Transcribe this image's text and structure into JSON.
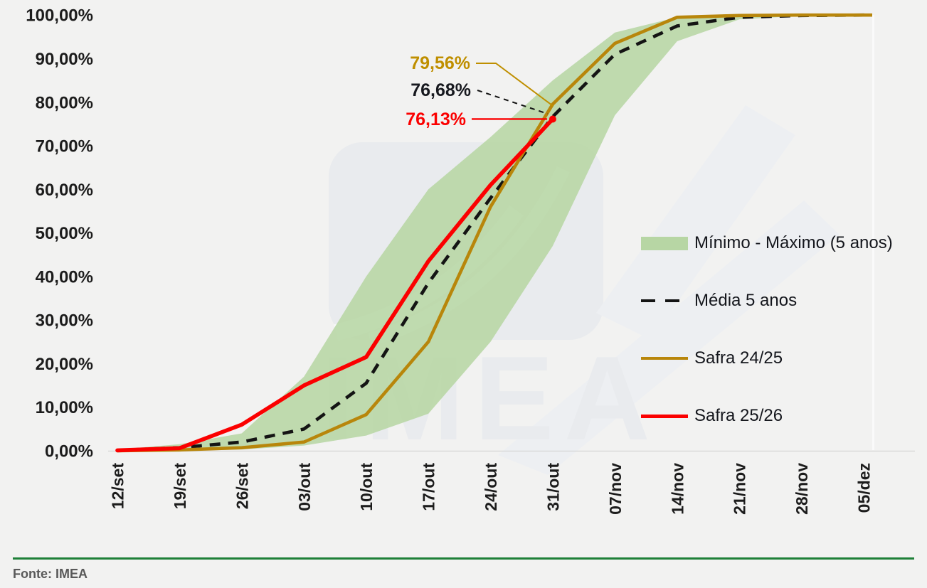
{
  "figure": {
    "background": "#f2f2f1",
    "watermark_text": "IMEA",
    "footer": {
      "source_label": "Fonte: IMEA",
      "divider_color": "#1e8038"
    }
  },
  "legend": {
    "position": "center-right",
    "items": [
      {
        "label": "Mínimo - Máximo (5 anos)",
        "type": "band",
        "color": "#b7d6a4"
      },
      {
        "label": "Média 5 anos",
        "type": "dashed-line",
        "color": "#141414"
      },
      {
        "label": "Safra 24/25",
        "type": "line",
        "color": "#b8860b"
      },
      {
        "label": "Safra 25/26",
        "type": "line",
        "color": "#fb0000"
      }
    ]
  },
  "chart_data": {
    "type": "area",
    "subtype": "band-with-lines",
    "categories": [
      "12/set",
      "19/set",
      "26/set",
      "03/out",
      "10/out",
      "17/out",
      "24/out",
      "31/out",
      "07/nov",
      "14/nov",
      "21/nov",
      "28/nov",
      "05/dez"
    ],
    "series": [
      {
        "name": "Mínimo (5 anos)",
        "role": "band-lower",
        "color": "#b7d6a4",
        "values": [
          0,
          0,
          0.3,
          1.2,
          3.5,
          8.5,
          25,
          47,
          77,
          94,
          99,
          99.8,
          100
        ]
      },
      {
        "name": "Máximo (5 anos)",
        "role": "band-upper",
        "color": "#b7d6a4",
        "values": [
          0.3,
          1.5,
          4,
          17,
          40,
          60,
          72,
          85,
          96,
          99.5,
          100,
          100,
          100
        ]
      },
      {
        "name": "Média 5 anos",
        "role": "line-dashed",
        "color": "#141414",
        "values": [
          0.1,
          0.7,
          2,
          5,
          15.5,
          38.5,
          58,
          76.68,
          91,
          97.5,
          99.5,
          99.9,
          100
        ]
      },
      {
        "name": "Safra 24/25",
        "role": "line",
        "color": "#b8860b",
        "values": [
          0,
          0.2,
          0.7,
          2,
          8.3,
          25,
          56,
          79.56,
          93.5,
          99.5,
          99.9,
          100,
          100
        ]
      },
      {
        "name": "Safra 25/26",
        "role": "line",
        "color": "#fb0000",
        "ends_at": "31/out",
        "values": [
          0.1,
          0.6,
          6,
          15,
          21.5,
          43.5,
          61,
          76.13
        ]
      }
    ],
    "y_axis": {
      "min": 0,
      "max": 100,
      "step": 10,
      "tick_labels": [
        "0,00%",
        "10,00%",
        "20,00%",
        "30,00%",
        "40,00%",
        "50,00%",
        "60,00%",
        "70,00%",
        "80,00%",
        "90,00%",
        "100,00%"
      ]
    },
    "x_axis": {
      "label_rotation": -90
    },
    "grid": "off",
    "legend_position": "center-right",
    "annotations": [
      {
        "text": "79,56%",
        "series": "Safra 24/25",
        "category": "31/out",
        "value": 79.56,
        "color": "#bf8f00"
      },
      {
        "text": "76,68%",
        "series": "Média 5 anos",
        "category": "31/out",
        "value": 76.68,
        "color": "#17191f"
      },
      {
        "text": "76,13%",
        "series": "Safra 25/26",
        "category": "31/out",
        "value": 76.13,
        "color": "#fb0000"
      }
    ]
  }
}
